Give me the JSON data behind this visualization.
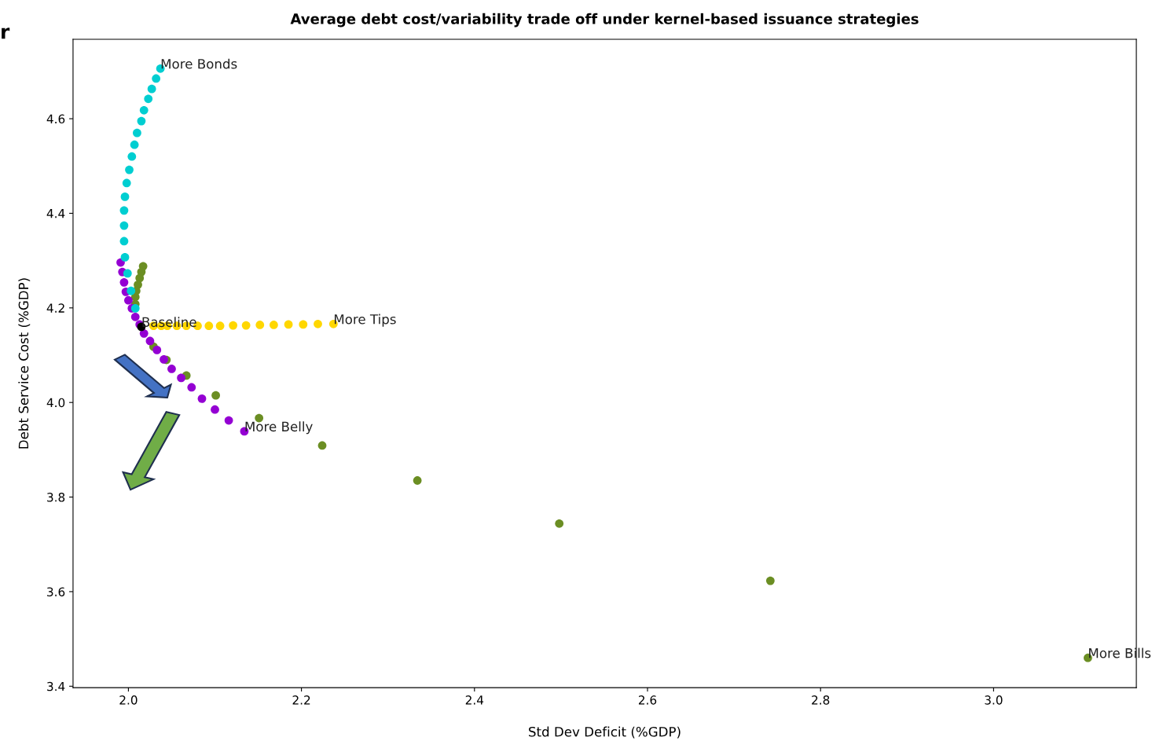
{
  "chart_data": {
    "type": "scatter",
    "title": "Average debt cost/variability trade off under kernel-based issuance strategies",
    "xlabel": "Std Dev Deficit (%GDP)",
    "ylabel": "Debt Service Cost (%GDP)",
    "xlim": [
      1.936,
      3.165
    ],
    "ylim": [
      3.397,
      4.768
    ],
    "xticks": [
      {
        "value": 2.0,
        "label": "2.0"
      },
      {
        "value": 2.2,
        "label": "2.2"
      },
      {
        "value": 2.4,
        "label": "2.4"
      },
      {
        "value": 2.6,
        "label": "2.6"
      },
      {
        "value": 2.8,
        "label": "2.8"
      },
      {
        "value": 3.0,
        "label": "3.0"
      }
    ],
    "yticks": [
      {
        "value": 3.4,
        "label": "3.4"
      },
      {
        "value": 3.6,
        "label": "3.6"
      },
      {
        "value": 3.8,
        "label": "3.8"
      },
      {
        "value": 4.0,
        "label": "4.0"
      },
      {
        "value": 4.2,
        "label": "4.2"
      },
      {
        "value": 4.4,
        "label": "4.4"
      },
      {
        "value": 4.6,
        "label": "4.6"
      }
    ],
    "grid": false,
    "legend": false,
    "marker": "circle",
    "series": [
      {
        "color": "#6b8e23",
        "x": [
          2.017,
          2.015,
          2.013,
          2.011,
          2.009,
          2.008,
          2.008,
          2.009,
          2.012,
          2.018,
          2.029,
          2.044,
          2.067,
          2.101,
          2.151,
          2.224,
          2.334,
          2.498,
          2.742,
          3.109
        ],
        "values": [
          4.288,
          4.276,
          4.263,
          4.249,
          4.236,
          4.223,
          4.208,
          null,
          null,
          null,
          4.118,
          4.09,
          4.057,
          4.015,
          3.967,
          3.909,
          3.835,
          3.744,
          3.623,
          3.46
        ]
      },
      {
        "color": "#ffd700",
        "x": [
          2.029,
          2.038,
          2.045,
          2.056,
          2.067,
          2.08,
          2.093,
          2.106,
          2.121,
          2.136,
          2.152,
          2.168,
          2.185,
          2.202,
          2.219,
          2.237
        ],
        "values": [
          4.162,
          4.162,
          4.162,
          4.162,
          4.162,
          4.162,
          4.162,
          4.162,
          4.163,
          4.163,
          4.164,
          4.164,
          4.165,
          4.165,
          4.166,
          4.166
        ]
      },
      {
        "color": "#9400d3",
        "x": [
          1.991,
          1.993,
          1.995,
          1.997,
          2.0,
          2.004,
          2.008,
          2.013,
          2.018,
          2.025,
          2.033,
          2.041,
          2.05,
          2.061,
          2.073,
          2.085,
          2.1,
          2.116,
          2.134
        ],
        "values": [
          4.296,
          4.276,
          4.254,
          4.234,
          4.216,
          4.199,
          4.181,
          4.165,
          4.146,
          4.13,
          4.111,
          4.091,
          4.071,
          4.052,
          4.032,
          4.008,
          3.985,
          3.962,
          3.939
        ]
      },
      {
        "color": "#00ced1",
        "x": [
          2.037,
          2.032,
          2.027,
          2.023,
          2.018,
          2.015,
          2.01,
          2.007,
          2.004,
          2.001,
          1.998,
          1.996,
          1.995,
          1.995,
          1.995,
          1.996,
          1.999,
          2.003,
          2.008
        ],
        "values": [
          4.706,
          4.685,
          4.663,
          4.642,
          4.618,
          4.595,
          4.57,
          4.545,
          4.52,
          4.492,
          4.464,
          4.435,
          4.406,
          4.374,
          4.341,
          4.307,
          4.273,
          4.236,
          4.199
        ]
      },
      {
        "color": "#000000",
        "x": [
          2.015
        ],
        "values": [
          4.16
        ]
      }
    ],
    "annotations": [
      {
        "text": "More Bonds",
        "x": 2.037,
        "y": 4.706
      },
      {
        "text": "More Tips",
        "x": 2.237,
        "y": 4.166
      },
      {
        "text": "Baseline",
        "x": 2.015,
        "y": 4.16
      },
      {
        "text": "More Belly",
        "x": 2.134,
        "y": 3.939
      },
      {
        "text": "More Bills",
        "x": 3.109,
        "y": 3.46
      },
      "r"
    ]
  }
}
